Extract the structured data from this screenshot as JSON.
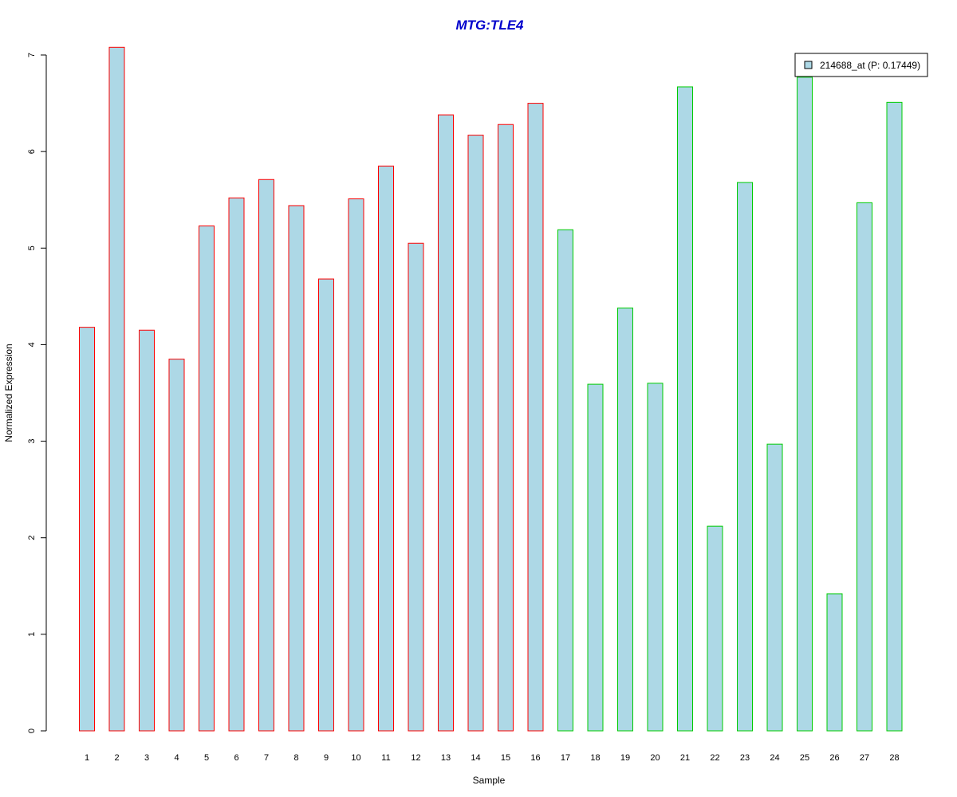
{
  "chart_data": {
    "type": "bar",
    "title": "MTG:TLE4",
    "xlabel": "Sample",
    "ylabel": "Normalized Expression",
    "ylim": [
      0,
      7
    ],
    "yticks": [
      0,
      1,
      2,
      3,
      4,
      5,
      6,
      7
    ],
    "grid": false,
    "legend_position": "top-right",
    "categories": [
      "1",
      "2",
      "3",
      "4",
      "5",
      "6",
      "7",
      "8",
      "9",
      "10",
      "11",
      "12",
      "13",
      "14",
      "15",
      "16",
      "17",
      "18",
      "19",
      "20",
      "21",
      "22",
      "23",
      "24",
      "25",
      "26",
      "27",
      "28"
    ],
    "series": [
      {
        "name": "214688_at (P: 0.17449)",
        "values": [
          4.18,
          7.08,
          4.15,
          3.85,
          5.23,
          5.52,
          5.71,
          5.44,
          4.68,
          5.51,
          5.85,
          5.05,
          6.38,
          6.17,
          6.28,
          6.5,
          5.19,
          3.59,
          4.38,
          3.6,
          6.67,
          2.12,
          5.68,
          2.97,
          6.77,
          1.42,
          5.47,
          6.51
        ],
        "group_edge_colors": [
          "#ff0000",
          "#ff0000",
          "#ff0000",
          "#ff0000",
          "#ff0000",
          "#ff0000",
          "#ff0000",
          "#ff0000",
          "#ff0000",
          "#ff0000",
          "#ff0000",
          "#ff0000",
          "#ff0000",
          "#ff0000",
          "#ff0000",
          "#ff0000",
          "#00cc00",
          "#00cc00",
          "#00cc00",
          "#00cc00",
          "#00cc00",
          "#00cc00",
          "#00cc00",
          "#00cc00",
          "#00cc00",
          "#00cc00",
          "#00cc00",
          "#00cc00"
        ]
      }
    ],
    "colors": {
      "bar_fill": "#add8e6",
      "title": "#0000cc",
      "axis": "#000000"
    }
  }
}
